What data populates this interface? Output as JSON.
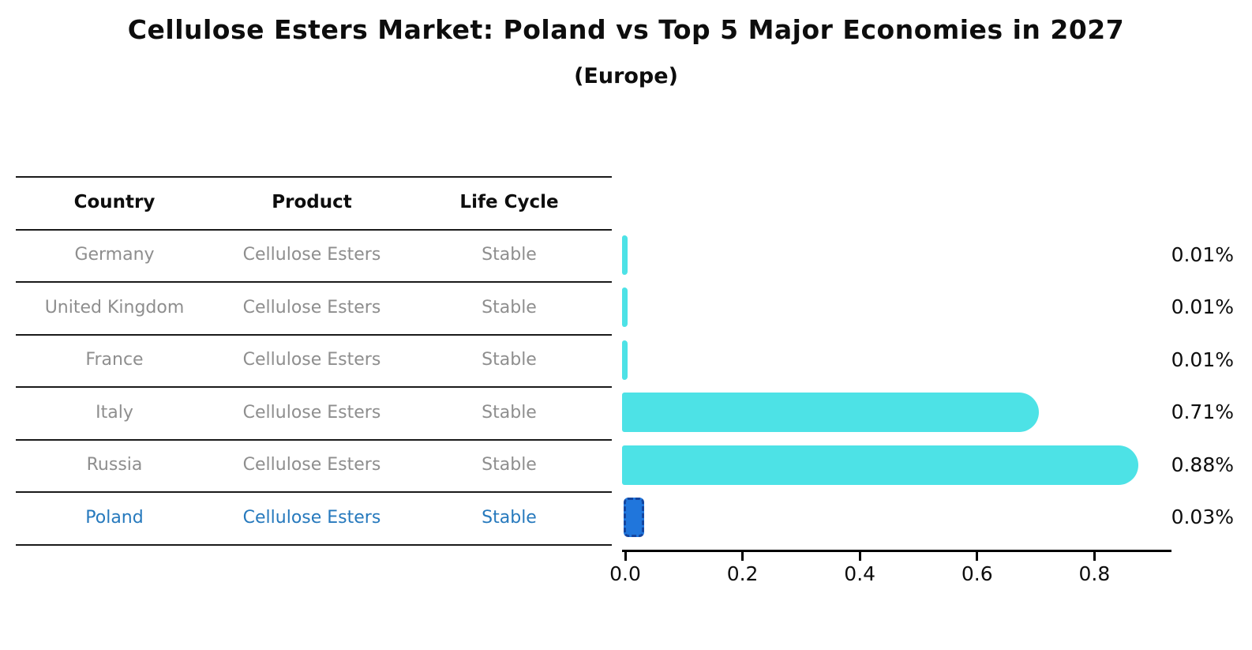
{
  "chart_data": {
    "type": "bar",
    "orientation": "horizontal",
    "title": "Cellulose Esters Market: Poland vs Top 5 Major Economies in 2027",
    "subtitle": "(Europe)",
    "categories": [
      "Germany",
      "United Kingdom",
      "France",
      "Italy",
      "Russia",
      "Poland"
    ],
    "values": [
      0.01,
      0.01,
      0.01,
      0.71,
      0.88,
      0.03
    ],
    "value_labels": [
      "0.01%",
      "0.01%",
      "0.01%",
      "0.71%",
      "0.88%",
      "0.03%"
    ],
    "x_ticks": [
      "0.0",
      "0.2",
      "0.4",
      "0.6",
      "0.8"
    ],
    "x_tick_values": [
      0.0,
      0.2,
      0.4,
      0.6,
      0.8
    ],
    "xlim": [
      0,
      0.93
    ],
    "grid": false,
    "legend_position": "none",
    "bar_color": "#4de2e6",
    "highlight_bar": {
      "category": "Poland",
      "index": 5,
      "fill": "#2076dc",
      "border": "#1446a0",
      "border_style": "dashed"
    }
  },
  "table": {
    "headers": [
      "Country",
      "Product",
      "Life Cycle"
    ],
    "rows": [
      [
        "Germany",
        "Cellulose Esters",
        "Stable"
      ],
      [
        "United Kingdom",
        "Cellulose Esters",
        "Stable"
      ],
      [
        "France",
        "Cellulose Esters",
        "Stable"
      ],
      [
        "Italy",
        "Cellulose Esters",
        "Stable"
      ],
      [
        "Russia",
        "Cellulose Esters",
        "Stable"
      ],
      [
        "Poland",
        "Cellulose Esters",
        "Stable"
      ]
    ],
    "highlight_row": {
      "category": "Poland",
      "index": 5,
      "text_color": "#2679bd"
    },
    "header_text_color": "#0d0d0d",
    "row_text_color": "#8e8e8e",
    "line_color": "#1a1a1a"
  }
}
